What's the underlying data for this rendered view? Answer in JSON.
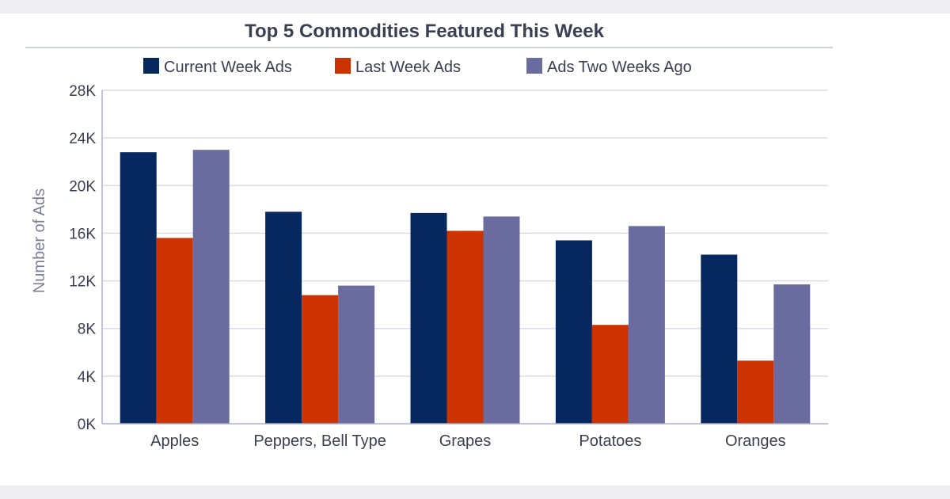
{
  "chart_data": {
    "type": "bar",
    "title": "Top 5 Commodities Featured This Week",
    "xlabel": "",
    "ylabel": "Number of Ads",
    "ylim": [
      0,
      28000
    ],
    "yticks": [
      0,
      4000,
      8000,
      12000,
      16000,
      20000,
      24000,
      28000
    ],
    "ytick_labels": [
      "0K",
      "4K",
      "8K",
      "12K",
      "16K",
      "20K",
      "24K",
      "28K"
    ],
    "categories": [
      "Apples",
      "Peppers, Bell Type",
      "Grapes",
      "Potatoes",
      "Oranges"
    ],
    "series": [
      {
        "name": "Current Week Ads",
        "color": "#06285e",
        "values": [
          22800,
          17800,
          17700,
          15400,
          14200
        ]
      },
      {
        "name": "Last Week Ads",
        "color": "#cc3300",
        "values": [
          15600,
          10800,
          16200,
          8300,
          5300
        ]
      },
      {
        "name": "Ads Two Weeks Ago",
        "color": "#6a6b9e",
        "values": [
          23000,
          11600,
          17400,
          16600,
          11700
        ]
      }
    ],
    "legend_position": "top-center",
    "grid": true
  }
}
